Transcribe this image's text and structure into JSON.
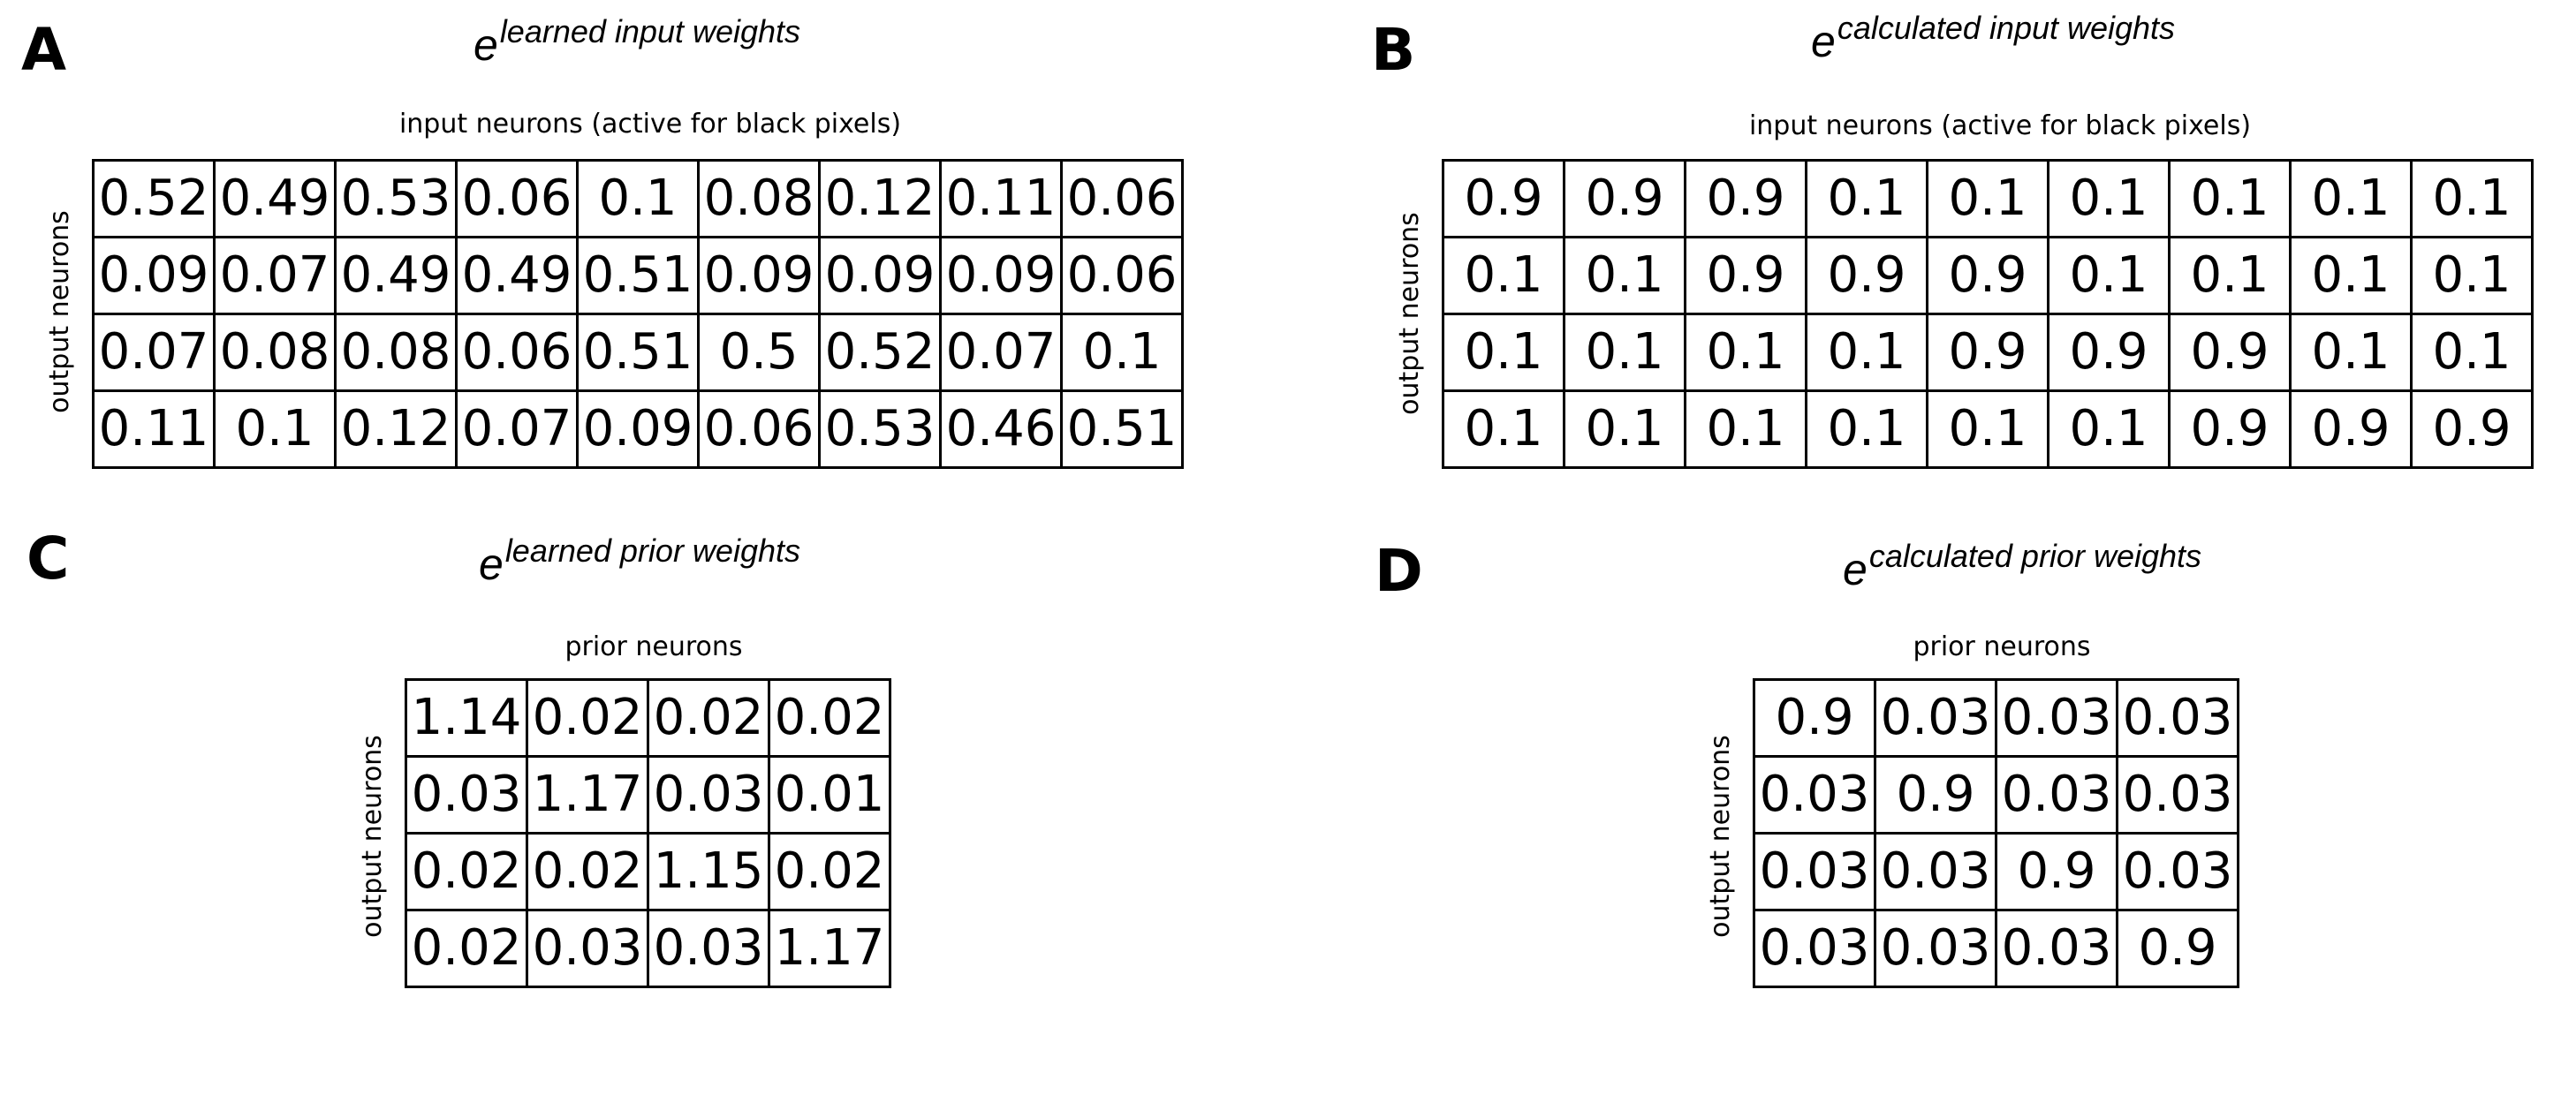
{
  "panels": {
    "A": {
      "letter": "A",
      "title_base": "e",
      "title_sup": "learned input weights",
      "top_label": "input neurons (active for black pixels)",
      "left_label": "output neurons",
      "rows": [
        [
          "0.52",
          "0.49",
          "0.53",
          "0.06",
          "0.1",
          "0.08",
          "0.12",
          "0.11",
          "0.06"
        ],
        [
          "0.09",
          "0.07",
          "0.49",
          "0.49",
          "0.51",
          "0.09",
          "0.09",
          "0.09",
          "0.06"
        ],
        [
          "0.07",
          "0.08",
          "0.08",
          "0.06",
          "0.51",
          "0.5",
          "0.52",
          "0.07",
          "0.1"
        ],
        [
          "0.11",
          "0.1",
          "0.12",
          "0.07",
          "0.09",
          "0.06",
          "0.53",
          "0.46",
          "0.51"
        ]
      ]
    },
    "B": {
      "letter": "B",
      "title_base": "e",
      "title_sup": "calculated input weights",
      "top_label": "input neurons (active for black pixels)",
      "left_label": "output neurons",
      "rows": [
        [
          "0.9",
          "0.9",
          "0.9",
          "0.1",
          "0.1",
          "0.1",
          "0.1",
          "0.1",
          "0.1"
        ],
        [
          "0.1",
          "0.1",
          "0.9",
          "0.9",
          "0.9",
          "0.1",
          "0.1",
          "0.1",
          "0.1"
        ],
        [
          "0.1",
          "0.1",
          "0.1",
          "0.1",
          "0.9",
          "0.9",
          "0.9",
          "0.1",
          "0.1"
        ],
        [
          "0.1",
          "0.1",
          "0.1",
          "0.1",
          "0.1",
          "0.1",
          "0.9",
          "0.9",
          "0.9"
        ]
      ]
    },
    "C": {
      "letter": "C",
      "title_base": "e",
      "title_sup": "learned prior weights",
      "top_label": "prior neurons",
      "left_label": "output neurons",
      "rows": [
        [
          "1.14",
          "0.02",
          "0.02",
          "0.02"
        ],
        [
          "0.03",
          "1.17",
          "0.03",
          "0.01"
        ],
        [
          "0.02",
          "0.02",
          "1.15",
          "0.02"
        ],
        [
          "0.02",
          "0.03",
          "0.03",
          "1.17"
        ]
      ]
    },
    "D": {
      "letter": "D",
      "title_base": "e",
      "title_sup": "calculated prior weights",
      "top_label": "prior neurons",
      "left_label": "output neurons",
      "rows": [
        [
          "0.9",
          "0.03",
          "0.03",
          "0.03"
        ],
        [
          "0.03",
          "0.9",
          "0.03",
          "0.03"
        ],
        [
          "0.03",
          "0.03",
          "0.9",
          "0.03"
        ],
        [
          "0.03",
          "0.03",
          "0.03",
          "0.9"
        ]
      ]
    }
  }
}
